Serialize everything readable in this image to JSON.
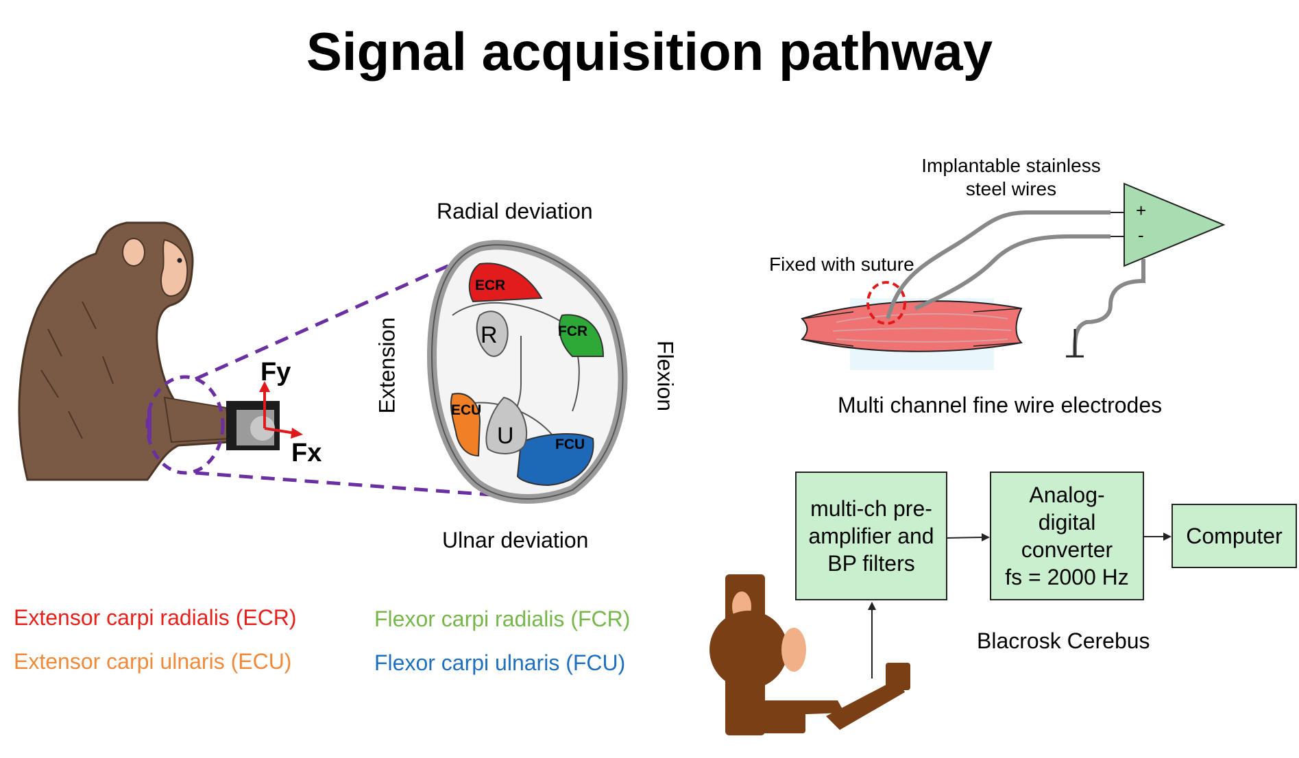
{
  "title": "Signal acquisition pathway",
  "cross_section": {
    "top_label": "Radial deviation",
    "bottom_label": "Ulnar deviation",
    "left_label": "Extension",
    "right_label": "Flexion",
    "muscles": [
      "ECR",
      "FCR",
      "ECU",
      "FCU"
    ],
    "bones": [
      "R",
      "U"
    ]
  },
  "force_axes": {
    "x": "Fx",
    "y": "Fy"
  },
  "electrode": {
    "wire_label_line1": "Implantable stainless",
    "wire_label_line2": "steel wires",
    "suture_label": "Fixed with suture",
    "plus": "+",
    "minus": "-",
    "caption": "Multi channel fine wire electrodes"
  },
  "pipeline": {
    "preamp": [
      "multi-ch pre-",
      "amplifier and",
      "BP filters"
    ],
    "adc": [
      "Analog-",
      "digital",
      "converter",
      "fs = 2000 Hz"
    ],
    "computer": "Computer",
    "system_label": "Blacrosk Cerebus"
  },
  "legend": [
    {
      "text": "Extensor carpi radialis (ECR)",
      "color": "#e8201c"
    },
    {
      "text": "Extensor carpi ulnaris (ECU)",
      "color": "#f08a3a"
    },
    {
      "text": "Flexor carpi radialis (FCR)",
      "color": "#76b64a"
    },
    {
      "text": "Flexor carpi ulnaris (FCU)",
      "color": "#1f6fbf"
    }
  ],
  "colors": {
    "ecr": "#e21c1c",
    "fcr": "#2ea836",
    "ecu": "#f07f26",
    "fcu": "#1e68b8",
    "dashed_outline": "#6a2fa0",
    "box_fill": "#c9efcf",
    "amplifier_fill": "#a8ddb0",
    "monkey_brown": "#7a5a45"
  }
}
